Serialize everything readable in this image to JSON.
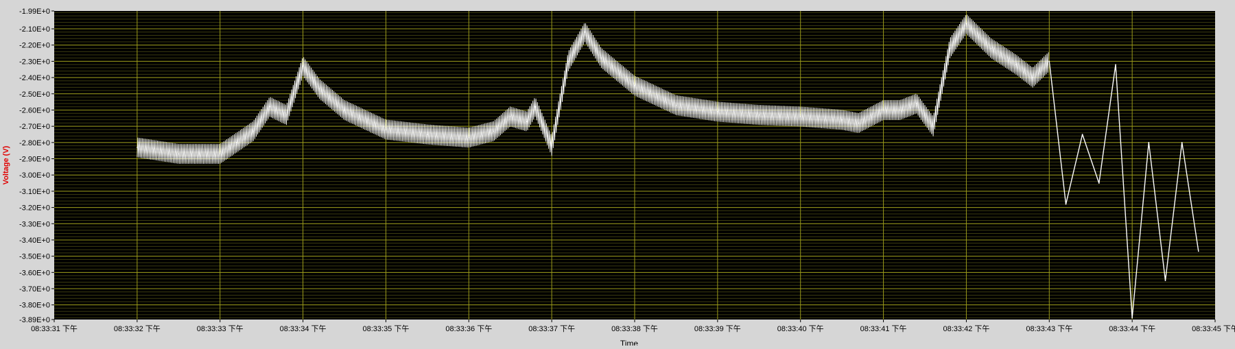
{
  "chart_data": {
    "type": "line",
    "title": "",
    "xlabel": "Time",
    "ylabel": "Voltage (V)",
    "x_tick_labels": [
      "08:33:31 下午",
      "08:33:32 下午",
      "08:33:33 下午",
      "08:33:34 下午",
      "08:33:35 下午",
      "08:33:36 下午",
      "08:33:37 下午",
      "08:33:38 下午",
      "08:33:39 下午",
      "08:33:40 下午",
      "08:33:41 下午",
      "08:33:42 下午",
      "08:33:43 下午",
      "08:33:44 下午",
      "08:33:45 下午"
    ],
    "y_tick_labels": [
      "-1.99E+0",
      "-2.10E+0",
      "-2.20E+0",
      "-2.30E+0",
      "-2.40E+0",
      "-2.50E+0",
      "-2.60E+0",
      "-2.70E+0",
      "-2.80E+0",
      "-2.90E+0",
      "-3.00E+0",
      "-3.10E+0",
      "-3.20E+0",
      "-3.30E+0",
      "-3.40E+0",
      "-3.50E+0",
      "-3.60E+0",
      "-3.70E+0",
      "-3.80E+0",
      "-3.89E+0"
    ],
    "y_tick_values": [
      -1.99,
      -2.1,
      -2.2,
      -2.3,
      -2.4,
      -2.5,
      -2.6,
      -2.7,
      -2.8,
      -2.9,
      -3.0,
      -3.1,
      -3.2,
      -3.3,
      -3.4,
      -3.5,
      -3.6,
      -3.7,
      -3.8,
      -3.89
    ],
    "xlim": [
      "08:33:31",
      "08:33:45"
    ],
    "ylim": [
      -3.89,
      -1.99
    ],
    "grid": true,
    "colors": {
      "plot_background": "#000000",
      "grid_major": "#9a9a1a",
      "grid_minor": "#3d3d10",
      "trace": "#ffffff",
      "ylabel": "#e00000",
      "frame": "#d6d6d6",
      "text": "#000000"
    },
    "series": [
      {
        "x": [
          "08:33:32.0",
          "08:33:32.5",
          "08:33:33.0",
          "08:33:33.2",
          "08:33:33.4",
          "08:33:33.6",
          "08:33:33.8",
          "08:33:34.0",
          "08:33:34.2",
          "08:33:34.5",
          "08:33:35.0",
          "08:33:35.5",
          "08:33:36.0",
          "08:33:36.3",
          "08:33:36.5",
          "08:33:36.7",
          "08:33:36.8",
          "08:33:37.0",
          "08:33:37.2",
          "08:33:37.4",
          "08:33:37.6",
          "08:33:38.0",
          "08:33:38.5",
          "08:33:39.0",
          "08:33:39.5",
          "08:33:40.0",
          "08:33:40.5",
          "08:33:40.7",
          "08:33:41.0",
          "08:33:41.2",
          "08:33:41.4",
          "08:33:41.6",
          "08:33:41.8",
          "08:33:42.0",
          "08:33:42.3",
          "08:33:42.6",
          "08:33:42.8",
          "08:33:43.0"
        ],
        "values": [
          -2.83,
          -2.87,
          -2.87,
          -2.8,
          -2.73,
          -2.58,
          -2.63,
          -2.33,
          -2.47,
          -2.6,
          -2.72,
          -2.75,
          -2.77,
          -2.73,
          -2.64,
          -2.67,
          -2.58,
          -2.82,
          -2.3,
          -2.12,
          -2.28,
          -2.45,
          -2.57,
          -2.61,
          -2.63,
          -2.64,
          -2.66,
          -2.68,
          -2.6,
          -2.6,
          -2.56,
          -2.7,
          -2.22,
          -2.07,
          -2.22,
          -2.32,
          -2.4,
          -2.3
        ],
        "oscillation_amplitude": 0.06
      },
      {
        "x": [
          "08:33:43.0",
          "08:33:43.2",
          "08:33:43.4",
          "08:33:43.6",
          "08:33:43.8",
          "08:33:44.0",
          "08:33:44.2",
          "08:33:44.4",
          "08:33:44.6",
          "08:33:44.8"
        ],
        "values": [
          -2.3,
          -3.18,
          -2.75,
          -3.05,
          -2.32,
          -3.88,
          -2.8,
          -3.65,
          -2.8,
          -3.47
        ],
        "oscillation_amplitude": 0.0
      }
    ]
  }
}
